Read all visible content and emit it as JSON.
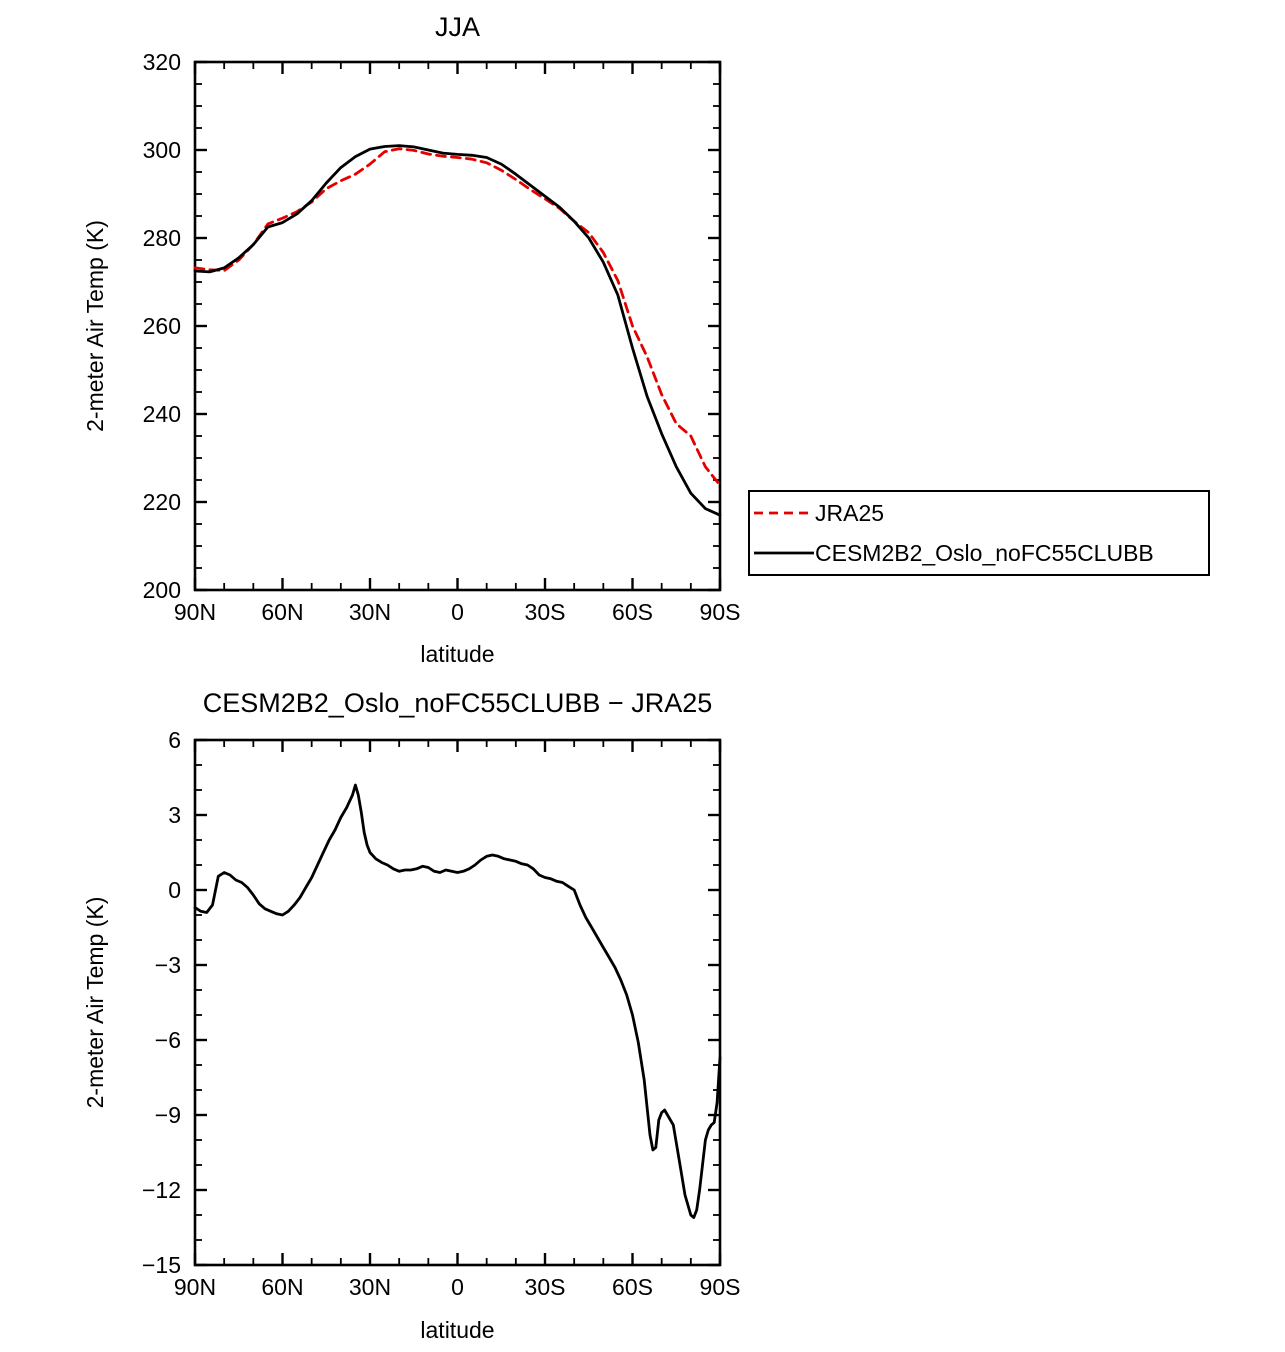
{
  "page": {
    "background": "#ffffff"
  },
  "legend": {
    "border_color": "#000000",
    "entries": [
      {
        "label": "JRA25",
        "color": "#e50000",
        "dashed": true
      },
      {
        "label": "CESM2B2_Oslo_noFC55CLUBB",
        "color": "#000000",
        "dashed": false
      }
    ]
  },
  "chart_data": [
    {
      "type": "line",
      "title": "JJA",
      "xlabel": "latitude",
      "ylabel": "2-meter Air Temp (K)",
      "xlim": [
        90,
        -90
      ],
      "ylim": [
        200,
        320
      ],
      "xticks": [
        90,
        60,
        30,
        0,
        -30,
        -60,
        -90
      ],
      "xtick_labels": [
        "90N",
        "60N",
        "30N",
        "0",
        "30S",
        "60S",
        "90S"
      ],
      "yticks": [
        200,
        220,
        240,
        260,
        280,
        300,
        320
      ],
      "ytick_labels": [
        "200",
        "220",
        "240",
        "260",
        "280",
        "300",
        "320"
      ],
      "x_minor_step": 10,
      "y_minor_step": 5,
      "grid": false,
      "legend_position": "outside-right",
      "series": [
        {
          "name": "JRA25",
          "color": "#e50000",
          "dashed": true,
          "x": [
            90,
            85,
            80,
            75,
            70,
            65,
            60,
            55,
            50,
            45,
            40,
            35,
            30,
            25,
            20,
            15,
            10,
            5,
            0,
            -5,
            -10,
            -15,
            -20,
            -25,
            -30,
            -35,
            -40,
            -45,
            -50,
            -55,
            -60,
            -65,
            -70,
            -75,
            -80,
            -85,
            -90
          ],
          "y": [
            273.2,
            272.8,
            272.6,
            275.0,
            278.5,
            283.2,
            284.5,
            286.0,
            288.2,
            291.2,
            293.0,
            294.5,
            296.8,
            299.6,
            300.3,
            299.9,
            299.1,
            298.6,
            298.3,
            297.9,
            297.1,
            295.4,
            293.3,
            291.0,
            288.9,
            286.7,
            283.8,
            281.2,
            276.7,
            270.3,
            260.0,
            253.0,
            244.4,
            237.8,
            235.0,
            228.0,
            223.8
          ]
        },
        {
          "name": "CESM2B2_Oslo_noFC55CLUBB",
          "color": "#000000",
          "dashed": false,
          "x": [
            90,
            85,
            80,
            75,
            70,
            65,
            60,
            55,
            50,
            45,
            40,
            35,
            30,
            25,
            20,
            15,
            10,
            5,
            0,
            -5,
            -10,
            -15,
            -20,
            -25,
            -30,
            -35,
            -40,
            -45,
            -50,
            -55,
            -60,
            -65,
            -70,
            -75,
            -80,
            -85,
            -90
          ],
          "y": [
            272.5,
            272.3,
            273.2,
            275.5,
            278.5,
            282.5,
            283.5,
            285.5,
            288.5,
            292.5,
            296.0,
            298.5,
            300.2,
            300.8,
            301.0,
            300.7,
            300.0,
            299.3,
            299.0,
            298.8,
            298.3,
            296.8,
            294.5,
            292.0,
            289.5,
            287.0,
            283.8,
            280.0,
            274.5,
            267.0,
            255.0,
            244.0,
            235.5,
            228.0,
            222.0,
            218.5,
            217.0
          ]
        }
      ]
    },
    {
      "type": "line",
      "title": "CESM2B2_Oslo_noFC55CLUBB − JRA25",
      "xlabel": "latitude",
      "ylabel": "2-meter Air Temp (K)",
      "xlim": [
        90,
        -90
      ],
      "ylim": [
        -15,
        6
      ],
      "xticks": [
        90,
        60,
        30,
        0,
        -30,
        -60,
        -90
      ],
      "xtick_labels": [
        "90N",
        "60N",
        "30N",
        "0",
        "30S",
        "60S",
        "90S"
      ],
      "yticks": [
        -15,
        -12,
        -9,
        -6,
        -3,
        0,
        3,
        6
      ],
      "ytick_labels": [
        "−15",
        "−12",
        "−9",
        "−6",
        "−3",
        "0",
        "3",
        "6"
      ],
      "x_minor_step": 10,
      "y_minor_step": 1,
      "grid": false,
      "series": [
        {
          "name": "CESM2B2_Oslo_noFC55CLUBB − JRA25",
          "color": "#000000",
          "dashed": false,
          "x": [
            90,
            88,
            86,
            84,
            82,
            80,
            78,
            76,
            74,
            72,
            70,
            68,
            66,
            64,
            62,
            60,
            58,
            56,
            54,
            52,
            50,
            48,
            46,
            44,
            42,
            40,
            38,
            36,
            35,
            34,
            33,
            32,
            31,
            30,
            28,
            26,
            24,
            22,
            20,
            18,
            16,
            14,
            12,
            10,
            8,
            6,
            4,
            2,
            0,
            -2,
            -4,
            -6,
            -8,
            -10,
            -12,
            -14,
            -16,
            -18,
            -20,
            -22,
            -24,
            -26,
            -28,
            -30,
            -32,
            -34,
            -36,
            -38,
            -40,
            -42,
            -44,
            -46,
            -48,
            -50,
            -52,
            -54,
            -56,
            -58,
            -60,
            -62,
            -64,
            -66,
            -67,
            -68,
            -69,
            -70,
            -71,
            -72,
            -74,
            -76,
            -78,
            -80,
            -81,
            -82,
            -83,
            -84,
            -85,
            -86,
            -87,
            -88,
            -89,
            -90
          ],
          "y": [
            -0.7,
            -0.85,
            -0.9,
            -0.6,
            0.55,
            0.7,
            0.6,
            0.4,
            0.3,
            0.1,
            -0.2,
            -0.55,
            -0.75,
            -0.85,
            -0.95,
            -1.0,
            -0.85,
            -0.6,
            -0.3,
            0.1,
            0.5,
            1.0,
            1.5,
            2.0,
            2.4,
            2.9,
            3.3,
            3.8,
            4.2,
            3.8,
            3.1,
            2.3,
            1.8,
            1.5,
            1.25,
            1.1,
            1.0,
            0.85,
            0.75,
            0.8,
            0.8,
            0.85,
            0.95,
            0.9,
            0.75,
            0.7,
            0.8,
            0.75,
            0.7,
            0.75,
            0.85,
            1.0,
            1.2,
            1.35,
            1.4,
            1.35,
            1.25,
            1.2,
            1.15,
            1.05,
            1.0,
            0.85,
            0.6,
            0.5,
            0.45,
            0.35,
            0.3,
            0.15,
            0.0,
            -0.6,
            -1.1,
            -1.5,
            -1.9,
            -2.3,
            -2.7,
            -3.1,
            -3.6,
            -4.2,
            -5.0,
            -6.1,
            -7.6,
            -9.8,
            -10.4,
            -10.3,
            -9.2,
            -8.9,
            -8.8,
            -9.0,
            -9.4,
            -10.8,
            -12.2,
            -13.0,
            -13.1,
            -12.8,
            -12.0,
            -11.0,
            -10.0,
            -9.6,
            -9.4,
            -9.3,
            -8.5,
            -6.7
          ]
        }
      ]
    }
  ]
}
